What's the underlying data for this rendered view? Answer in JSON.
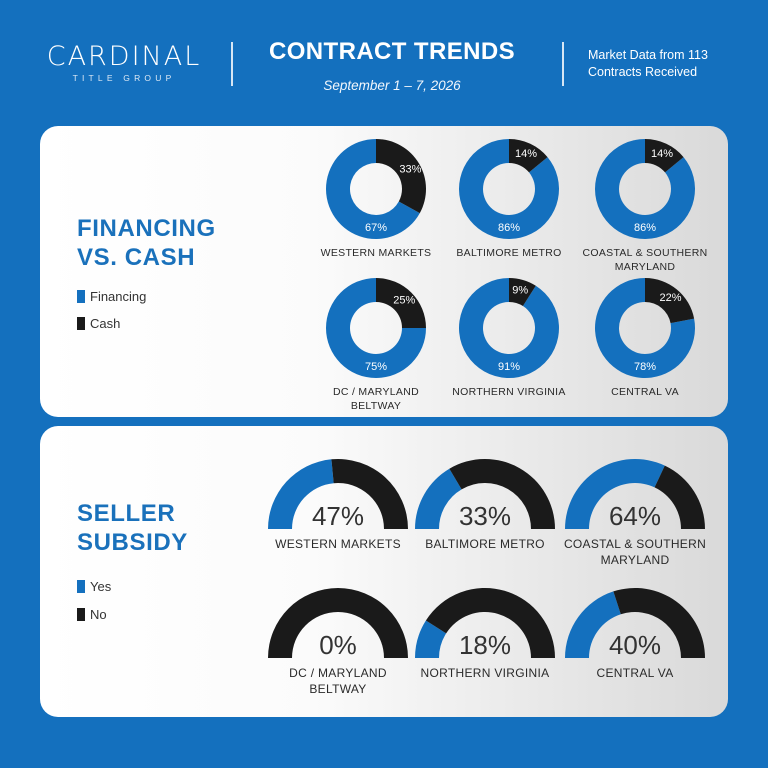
{
  "header": {
    "logo_main": "CARDINAL",
    "logo_sub": "TITLE GROUP",
    "title": "CONTRACT TRENDS",
    "date": "September 1 – 7, 2026",
    "market_data_line1": "Market Data from 113",
    "market_data_line2": "Contracts Received"
  },
  "colors": {
    "background": "#1470be",
    "primary": "#1470be",
    "secondary": "#1a1a1a",
    "title": "#1a71bb"
  },
  "financing": {
    "title_line1": "FINANCING",
    "title_line2": "VS. CASH",
    "legend": [
      "Financing",
      "Cash"
    ]
  },
  "subsidy": {
    "title_line1": "SELLER",
    "title_line2": "SUBSIDY",
    "legend": [
      "Yes",
      "No"
    ]
  },
  "chart_data": [
    {
      "type": "pie",
      "subtype": "donut",
      "title": "FINANCING VS. CASH",
      "legend": [
        "Financing",
        "Cash"
      ],
      "categories": [
        [
          "WESTERN MARKETS"
        ],
        [
          "BALTIMORE METRO"
        ],
        [
          "COASTAL & SOUTHERN",
          "MARYLAND"
        ],
        [
          "DC / MARYLAND",
          "BELTWAY"
        ],
        [
          "NORTHERN VIRGINIA"
        ],
        [
          "CENTRAL VA"
        ]
      ],
      "financing": [
        67,
        86,
        86,
        75,
        91,
        78
      ],
      "cash": [
        33,
        14,
        14,
        25,
        9,
        22
      ]
    },
    {
      "type": "pie",
      "subtype": "half-donut",
      "title": "SELLER SUBSIDY",
      "legend": [
        "Yes",
        "No"
      ],
      "categories": [
        [
          "WESTERN MARKETS"
        ],
        [
          "BALTIMORE METRO"
        ],
        [
          "COASTAL & SOUTHERN",
          "MARYLAND"
        ],
        [
          "DC / MARYLAND",
          "BELTWAY"
        ],
        [
          "NORTHERN VIRGINIA"
        ],
        [
          "CENTRAL VA"
        ]
      ],
      "yes": [
        47,
        33,
        64,
        0,
        18,
        40
      ]
    }
  ]
}
